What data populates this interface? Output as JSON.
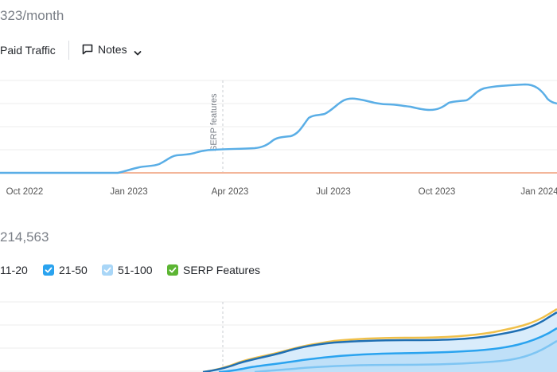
{
  "traffic_header": {
    "value": "323/month"
  },
  "toolbar": {
    "paid_traffic_label": "Paid Traffic",
    "notes_label": "Notes"
  },
  "traffic_chart": {
    "x_ticks": [
      "Oct 2022",
      "Jan 2023",
      "Apr 2023",
      "Jul 2023",
      "Oct 2023",
      "Jan 2024"
    ],
    "annotation": "SERP features"
  },
  "keywords_header": {
    "value": "214,563"
  },
  "legend": {
    "items": [
      {
        "label": "11-20",
        "color": "#1f6fb3"
      },
      {
        "label": "21-50",
        "color": "#2aa3ef"
      },
      {
        "label": "51-100",
        "color": "#a9d6f7"
      },
      {
        "label": "SERP Features",
        "color": "#5cb533"
      }
    ]
  },
  "colors": {
    "line": "#5aaee6",
    "baseline": "#f3b69a",
    "grid": "#ececec"
  },
  "icons": [
    "notes-icon",
    "chevron-down-icon",
    "check-icon"
  ]
}
